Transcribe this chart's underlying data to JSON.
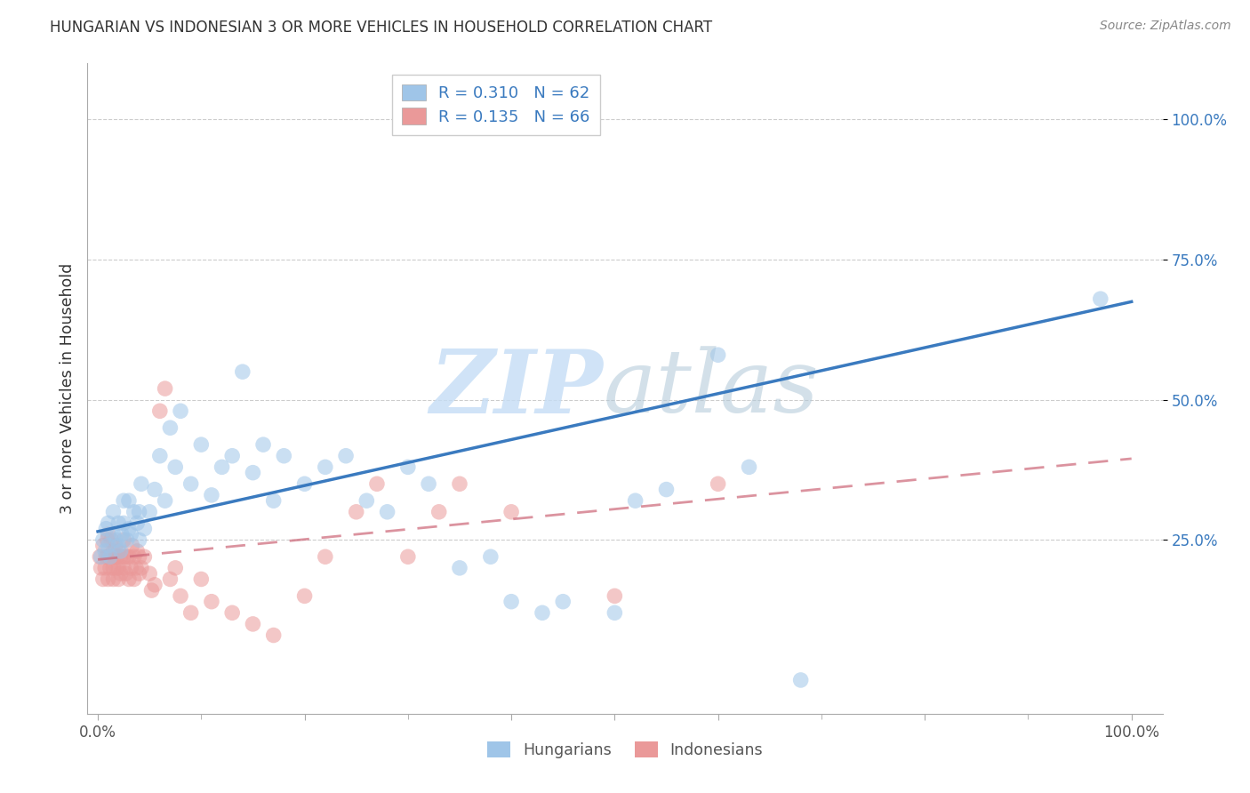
{
  "title": "HUNGARIAN VS INDONESIAN 3 OR MORE VEHICLES IN HOUSEHOLD CORRELATION CHART",
  "source": "Source: ZipAtlas.com",
  "ylabel": "3 or more Vehicles in Household",
  "ytick_labels": [
    "25.0%",
    "50.0%",
    "75.0%",
    "100.0%"
  ],
  "ytick_positions": [
    0.25,
    0.5,
    0.75,
    1.0
  ],
  "xlim": [
    -0.01,
    1.03
  ],
  "ylim": [
    -0.06,
    1.1
  ],
  "hungarian_R": 0.31,
  "hungarian_N": 62,
  "indonesian_R": 0.135,
  "indonesian_N": 66,
  "hungarian_color": "#9fc5e8",
  "indonesian_color": "#ea9999",
  "trendline_hungarian_color": "#3a7abf",
  "trendline_indonesian_color": "#cc6677",
  "legend_label_hungarian": "Hungarians",
  "legend_label_indonesian": "Indonesians",
  "hun_x": [
    0.003,
    0.005,
    0.007,
    0.008,
    0.01,
    0.01,
    0.012,
    0.015,
    0.015,
    0.018,
    0.02,
    0.02,
    0.022,
    0.023,
    0.025,
    0.025,
    0.028,
    0.03,
    0.03,
    0.032,
    0.035,
    0.038,
    0.04,
    0.04,
    0.042,
    0.045,
    0.05,
    0.055,
    0.06,
    0.065,
    0.07,
    0.075,
    0.08,
    0.09,
    0.1,
    0.11,
    0.12,
    0.13,
    0.14,
    0.15,
    0.16,
    0.17,
    0.18,
    0.2,
    0.22,
    0.24,
    0.26,
    0.28,
    0.3,
    0.32,
    0.35,
    0.38,
    0.4,
    0.43,
    0.45,
    0.5,
    0.52,
    0.55,
    0.6,
    0.63,
    0.68,
    0.97
  ],
  "hun_y": [
    0.22,
    0.25,
    0.23,
    0.27,
    0.24,
    0.28,
    0.22,
    0.26,
    0.3,
    0.25,
    0.24,
    0.28,
    0.23,
    0.26,
    0.28,
    0.32,
    0.25,
    0.27,
    0.32,
    0.26,
    0.3,
    0.28,
    0.25,
    0.3,
    0.35,
    0.27,
    0.3,
    0.34,
    0.4,
    0.32,
    0.45,
    0.38,
    0.48,
    0.35,
    0.42,
    0.33,
    0.38,
    0.4,
    0.55,
    0.37,
    0.42,
    0.32,
    0.4,
    0.35,
    0.38,
    0.4,
    0.32,
    0.3,
    0.38,
    0.35,
    0.2,
    0.22,
    0.14,
    0.12,
    0.14,
    0.12,
    0.32,
    0.34,
    0.58,
    0.38,
    0.0,
    0.68
  ],
  "ind_x": [
    0.002,
    0.003,
    0.005,
    0.005,
    0.007,
    0.008,
    0.009,
    0.01,
    0.01,
    0.01,
    0.012,
    0.013,
    0.013,
    0.015,
    0.015,
    0.015,
    0.016,
    0.017,
    0.018,
    0.018,
    0.02,
    0.02,
    0.02,
    0.022,
    0.022,
    0.025,
    0.025,
    0.025,
    0.027,
    0.028,
    0.03,
    0.03,
    0.032,
    0.033,
    0.035,
    0.035,
    0.037,
    0.038,
    0.04,
    0.04,
    0.042,
    0.045,
    0.05,
    0.052,
    0.055,
    0.06,
    0.065,
    0.07,
    0.075,
    0.08,
    0.09,
    0.1,
    0.11,
    0.13,
    0.15,
    0.17,
    0.2,
    0.22,
    0.25,
    0.27,
    0.3,
    0.33,
    0.35,
    0.4,
    0.5,
    0.6
  ],
  "ind_y": [
    0.22,
    0.2,
    0.18,
    0.24,
    0.2,
    0.22,
    0.25,
    0.18,
    0.22,
    0.26,
    0.2,
    0.22,
    0.25,
    0.18,
    0.2,
    0.23,
    0.22,
    0.24,
    0.2,
    0.22,
    0.18,
    0.2,
    0.23,
    0.19,
    0.22,
    0.2,
    0.22,
    0.25,
    0.19,
    0.22,
    0.18,
    0.22,
    0.2,
    0.24,
    0.18,
    0.22,
    0.2,
    0.23,
    0.19,
    0.22,
    0.2,
    0.22,
    0.19,
    0.16,
    0.17,
    0.48,
    0.52,
    0.18,
    0.2,
    0.15,
    0.12,
    0.18,
    0.14,
    0.12,
    0.1,
    0.08,
    0.15,
    0.22,
    0.3,
    0.35,
    0.22,
    0.3,
    0.35,
    0.3,
    0.15,
    0.35
  ]
}
